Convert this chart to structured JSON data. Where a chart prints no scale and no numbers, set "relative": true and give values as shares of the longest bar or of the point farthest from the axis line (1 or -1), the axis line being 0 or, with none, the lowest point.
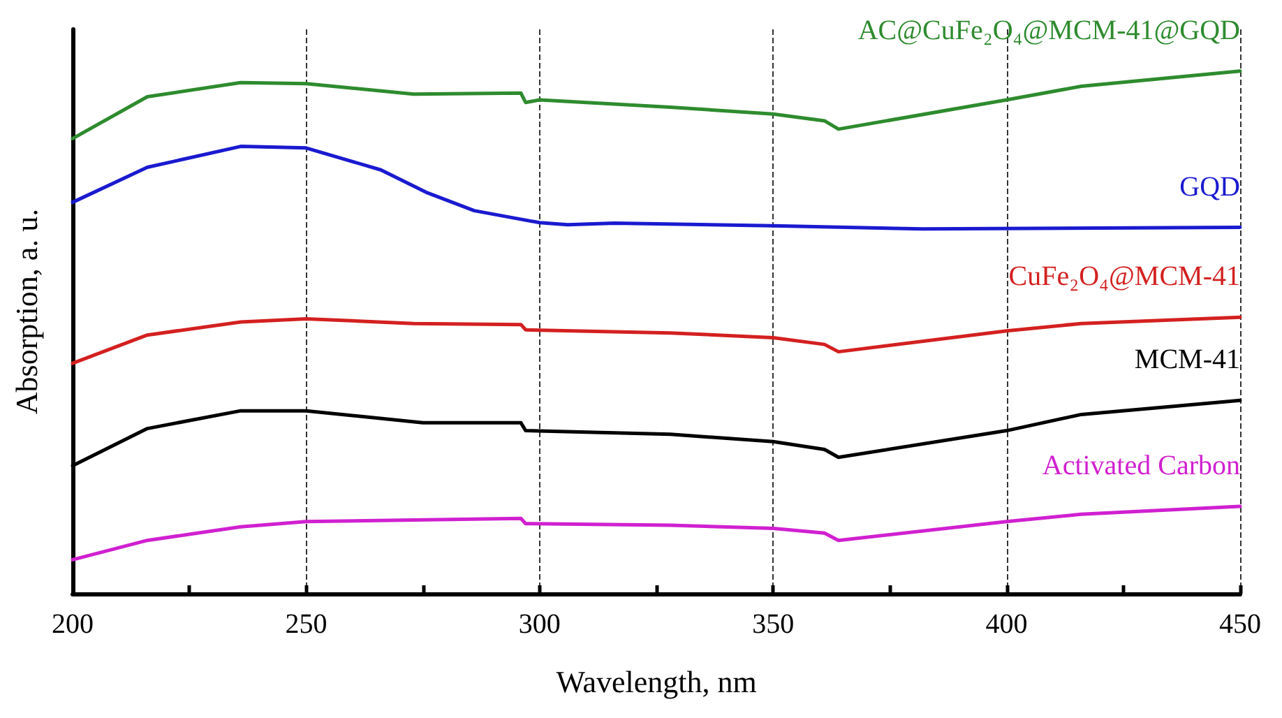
{
  "chart_data": {
    "type": "line",
    "relative": true,
    "xlabel": "Wavelength, nm",
    "ylabel": "Absorption, a. u.",
    "xlim": [
      200,
      450
    ],
    "xticks": [
      200,
      {
        "value": 225,
        "label": null
      },
      250,
      {
        "value": 275,
        "label": null
      },
      300,
      {
        "value": 325,
        "label": null
      },
      350,
      {
        "value": 375,
        "label": null
      },
      400,
      {
        "value": 425,
        "label": null
      },
      450
    ],
    "grid": "x",
    "legend": false,
    "marker": "none",
    "line_style": "solid",
    "series": [
      {
        "name": "AC@CuFe₂O₄@MCM-41@GQD",
        "color": "#2e8b2e",
        "x": [
          200,
          216,
          236,
          250,
          273,
          296,
          297,
          300,
          328,
          350,
          361,
          364,
          400,
          416,
          450
        ],
        "values": [
          0.871,
          0.951,
          0.978,
          0.976,
          0.956,
          0.958,
          0.94,
          0.945,
          0.931,
          0.918,
          0.905,
          0.889,
          0.945,
          0.971,
          1.0
        ]
      },
      {
        "name": "GQD",
        "color": "#1a1ad0",
        "x": [
          200,
          216,
          236,
          250,
          266,
          276,
          286,
          300,
          306,
          316,
          350,
          382,
          450
        ],
        "values": [
          0.749,
          0.816,
          0.856,
          0.853,
          0.811,
          0.767,
          0.733,
          0.71,
          0.706,
          0.709,
          0.704,
          0.698,
          0.701
        ]
      },
      {
        "name": "CuFe₂O₄@MCM-41",
        "color": "#d42020",
        "x": [
          200,
          216,
          236,
          250,
          273,
          296,
          297,
          328,
          350,
          361,
          364,
          400,
          416,
          450
        ],
        "values": [
          0.441,
          0.495,
          0.52,
          0.526,
          0.517,
          0.515,
          0.505,
          0.499,
          0.49,
          0.477,
          0.463,
          0.503,
          0.517,
          0.529
        ]
      },
      {
        "name": "MCM-41",
        "color": "#000000",
        "x": [
          200,
          216,
          236,
          250,
          275,
          296,
          297,
          328,
          350,
          361,
          364,
          400,
          416,
          450
        ],
        "values": [
          0.245,
          0.316,
          0.35,
          0.35,
          0.327,
          0.327,
          0.312,
          0.305,
          0.291,
          0.276,
          0.261,
          0.312,
          0.343,
          0.37
        ]
      },
      {
        "name": "Activated Carbon",
        "color": "#d020d0",
        "x": [
          200,
          216,
          236,
          250,
          296,
          297,
          328,
          350,
          361,
          364,
          400,
          416,
          450
        ],
        "values": [
          0.065,
          0.102,
          0.128,
          0.138,
          0.144,
          0.134,
          0.131,
          0.125,
          0.116,
          0.102,
          0.138,
          0.152,
          0.167
        ]
      }
    ]
  }
}
